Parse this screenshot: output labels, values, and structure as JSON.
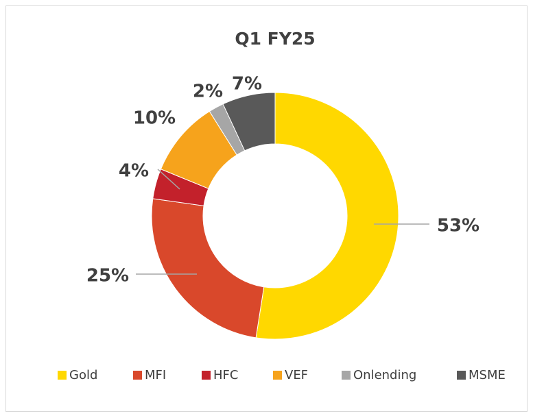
{
  "chart_data": {
    "type": "donut",
    "title": "Q1 FY25",
    "categories": [
      "Gold",
      "MFI",
      "HFC",
      "VEF",
      "Onlending",
      "MSME"
    ],
    "values": [
      53,
      25,
      4,
      10,
      2,
      7
    ],
    "value_labels": [
      "53%",
      "25%",
      "4%",
      "10%",
      "2%",
      "7%"
    ],
    "colors": [
      "#ffd800",
      "#d9482b",
      "#c3212b",
      "#f6a31c",
      "#a6a6a6",
      "#595959"
    ],
    "legend": "bottom"
  }
}
